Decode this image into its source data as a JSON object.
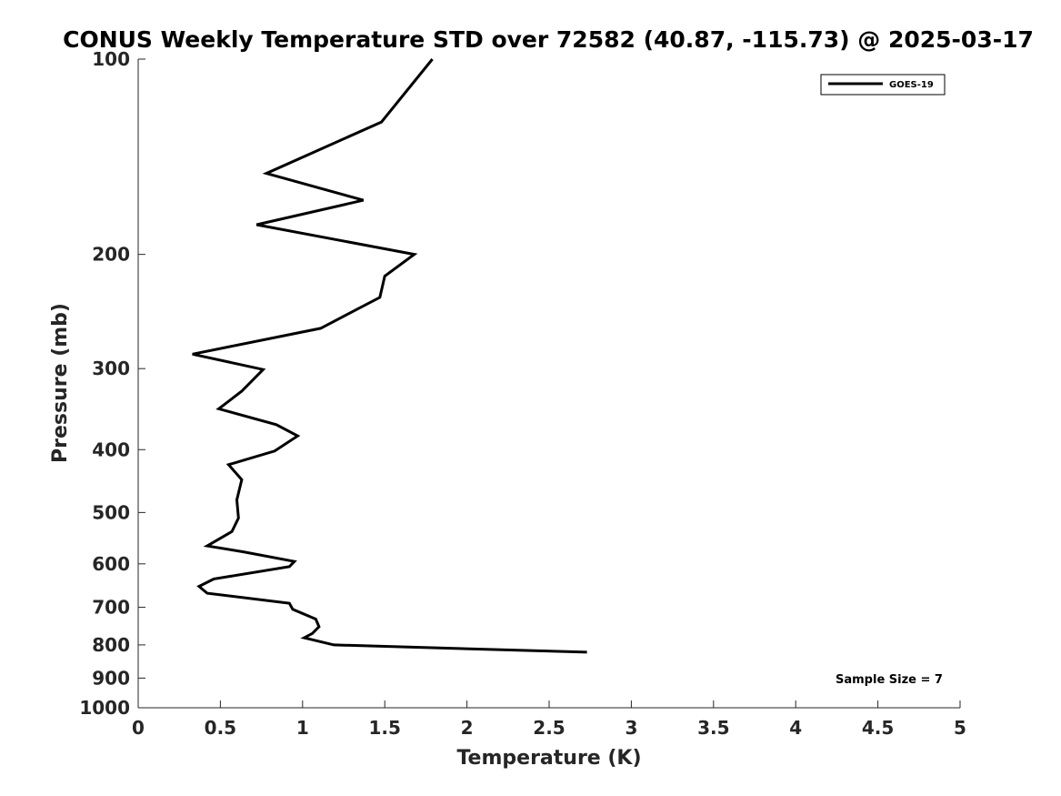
{
  "chart_data": {
    "type": "line",
    "title": "CONUS Weekly Temperature STD over 72582 (40.87, -115.73) @ 2025-03-17",
    "xlabel": "Temperature (K)",
    "ylabel": "Pressure (mb)",
    "xlim": [
      0,
      5
    ],
    "ylim": [
      100,
      1000
    ],
    "y_scale": "log",
    "y_reversed": true,
    "x_ticks": [
      0,
      0.5,
      1,
      1.5,
      2,
      2.5,
      3,
      3.5,
      4,
      4.5,
      5
    ],
    "x_tick_labels": [
      "0",
      "0.5",
      "1",
      "1.5",
      "2",
      "2.5",
      "3",
      "3.5",
      "4",
      "4.5",
      "5"
    ],
    "y_ticks": [
      100,
      200,
      300,
      400,
      500,
      600,
      700,
      800,
      900,
      1000
    ],
    "y_tick_labels": [
      "100",
      "200",
      "300",
      "400",
      "500",
      "600",
      "700",
      "800",
      "900",
      "1000"
    ],
    "grid": false,
    "legend_position": "top-right",
    "series": [
      {
        "name": "GOES-19",
        "color": "#000000",
        "points": [
          {
            "x": 1.79,
            "p": 100
          },
          {
            "x": 1.48,
            "p": 125
          },
          {
            "x": 0.78,
            "p": 150
          },
          {
            "x": 1.37,
            "p": 165
          },
          {
            "x": 0.72,
            "p": 180
          },
          {
            "x": 1.68,
            "p": 200
          },
          {
            "x": 1.5,
            "p": 216
          },
          {
            "x": 1.47,
            "p": 233
          },
          {
            "x": 1.11,
            "p": 260
          },
          {
            "x": 0.33,
            "p": 285
          },
          {
            "x": 0.76,
            "p": 301
          },
          {
            "x": 0.63,
            "p": 325
          },
          {
            "x": 0.49,
            "p": 346
          },
          {
            "x": 0.84,
            "p": 366
          },
          {
            "x": 0.97,
            "p": 381
          },
          {
            "x": 0.83,
            "p": 402
          },
          {
            "x": 0.55,
            "p": 422
          },
          {
            "x": 0.63,
            "p": 445
          },
          {
            "x": 0.6,
            "p": 478
          },
          {
            "x": 0.61,
            "p": 510
          },
          {
            "x": 0.57,
            "p": 535
          },
          {
            "x": 0.42,
            "p": 563
          },
          {
            "x": 0.64,
            "p": 575
          },
          {
            "x": 0.95,
            "p": 595
          },
          {
            "x": 0.92,
            "p": 606
          },
          {
            "x": 0.46,
            "p": 633
          },
          {
            "x": 0.37,
            "p": 650
          },
          {
            "x": 0.42,
            "p": 666
          },
          {
            "x": 0.92,
            "p": 690
          },
          {
            "x": 0.94,
            "p": 705
          },
          {
            "x": 1.08,
            "p": 730
          },
          {
            "x": 1.1,
            "p": 750
          },
          {
            "x": 1.06,
            "p": 768
          },
          {
            "x": 1.01,
            "p": 780
          },
          {
            "x": 1.19,
            "p": 800
          },
          {
            "x": 2.73,
            "p": 821
          }
        ]
      }
    ],
    "annotations": [
      "Sample Size = 7"
    ]
  }
}
